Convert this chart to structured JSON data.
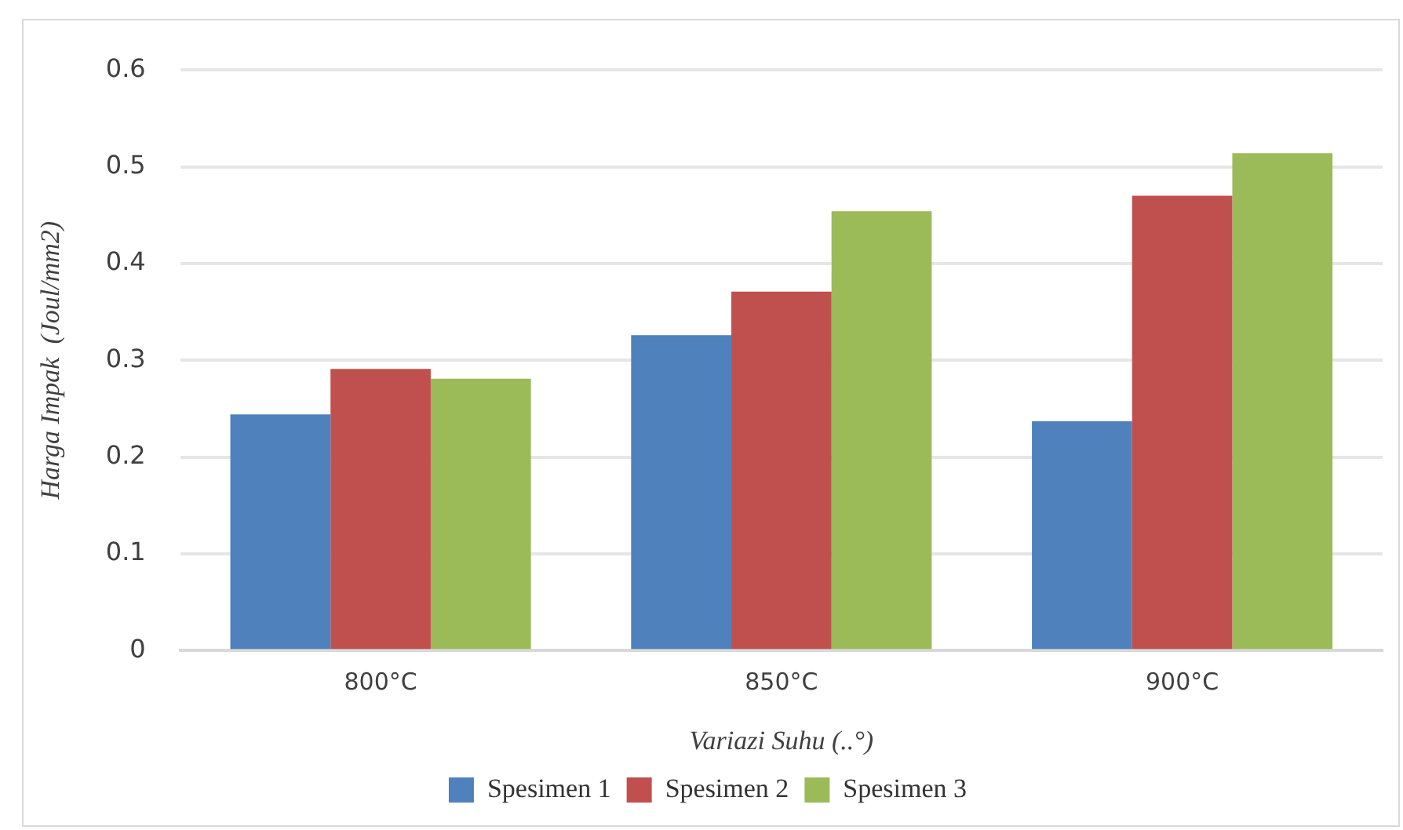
{
  "chart_data": {
    "type": "bar",
    "xlabel": "Variazi Suhu (..°)",
    "ylabel": "Harga Impak  (Joul/mm2)",
    "categories": [
      "800°C",
      "850°C",
      "900°C"
    ],
    "series": [
      {
        "name": "Spesimen 1",
        "color": "#4f81bd",
        "values": [
          0.244,
          0.326,
          0.237
        ]
      },
      {
        "name": "Spesimen 2",
        "color": "#c0504d",
        "values": [
          0.291,
          0.371,
          0.47
        ]
      },
      {
        "name": "Spesimen 3",
        "color": "#9bbb59",
        "values": [
          0.281,
          0.454,
          0.514
        ]
      }
    ],
    "ylim": [
      0,
      0.6
    ],
    "yticks": [
      0,
      0.1,
      0.2,
      0.3,
      0.4,
      0.5,
      0.6
    ],
    "grid": "y",
    "legend": "bottom"
  }
}
